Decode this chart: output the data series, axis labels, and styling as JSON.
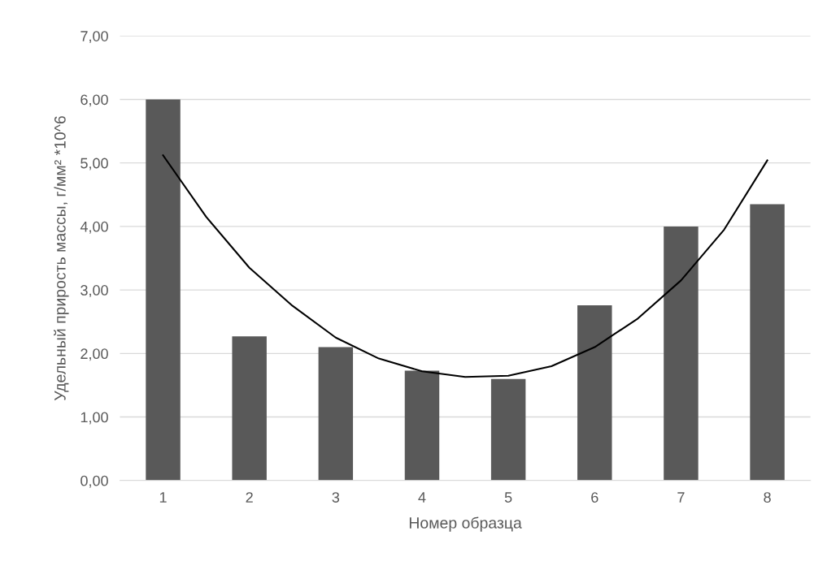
{
  "chart_data": {
    "type": "bar",
    "xlabel": "Номер образца",
    "ylabel": "Удельный прирость массы, г/мм² *10^6",
    "x": [
      1,
      2,
      3,
      4,
      5,
      6,
      7,
      8
    ],
    "xlim": [
      0.5,
      8.5
    ],
    "xticks": [
      1,
      2,
      3,
      4,
      5,
      6,
      7,
      8
    ],
    "ylim": [
      0,
      7
    ],
    "yticks": [
      {
        "value": 0,
        "label": "0,00"
      },
      {
        "value": 1,
        "label": "1,00"
      },
      {
        "value": 2,
        "label": "2,00"
      },
      {
        "value": 3,
        "label": "3,00"
      },
      {
        "value": 4,
        "label": "4,00"
      },
      {
        "value": 5,
        "label": "5,00"
      },
      {
        "value": 6,
        "label": "6,00"
      },
      {
        "value": 7,
        "label": "7,00"
      }
    ],
    "grid": "y",
    "series": [
      {
        "color": "#595959",
        "values": [
          6.0,
          2.27,
          2.1,
          1.73,
          1.6,
          2.76,
          4.0,
          4.35
        ]
      },
      {
        "type": "line",
        "color": "#000000",
        "x": [
          1,
          1.5,
          2,
          2.5,
          3,
          3.5,
          4,
          4.5,
          5,
          5.5,
          6,
          6.5,
          7,
          7.5,
          8
        ],
        "values": [
          5.12,
          4.15,
          3.35,
          2.75,
          2.25,
          1.92,
          1.72,
          1.63,
          1.65,
          1.8,
          2.1,
          2.55,
          3.15,
          3.95,
          5.04
        ]
      }
    ]
  }
}
